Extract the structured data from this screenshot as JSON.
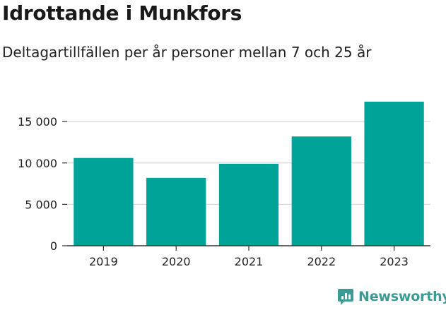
{
  "title": "Idrottande i Munkfors",
  "subtitle": "Deltagartillfällen per år personer mellan 7 och 25 år",
  "brand": "Newsworthy",
  "colors": {
    "bar": "#00a398",
    "grid": "#d9d9d9",
    "axis": "#333333",
    "brand": "#3d9a94"
  },
  "chart_data": {
    "type": "bar",
    "categories": [
      "2019",
      "2020",
      "2021",
      "2022",
      "2023"
    ],
    "values": [
      10600,
      8200,
      9900,
      13200,
      17400
    ],
    "yticks": [
      0,
      5000,
      10000,
      15000
    ],
    "ytick_labels": [
      "0",
      "5 000",
      "10 000",
      "15 000"
    ],
    "ylim": [
      0,
      17400
    ],
    "grid": true,
    "xlabel": "",
    "ylabel": ""
  }
}
